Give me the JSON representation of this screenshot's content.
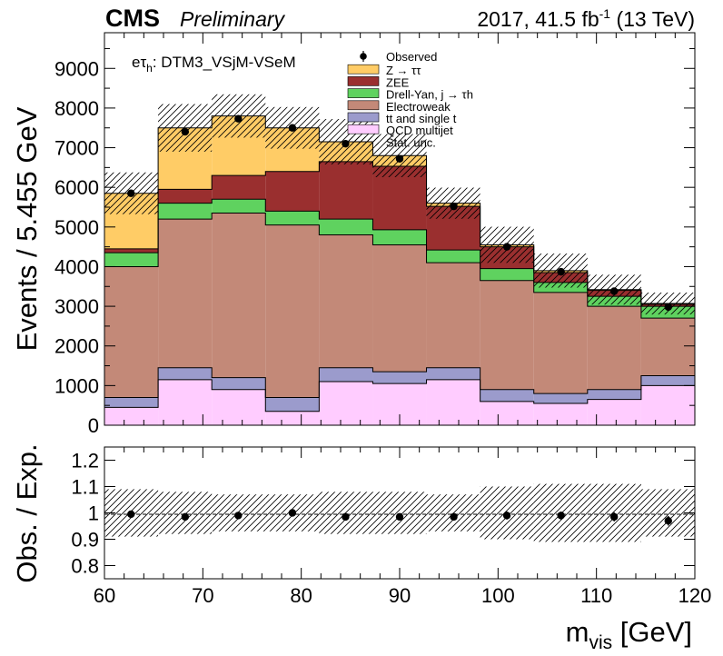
{
  "header": {
    "cms": "CMS",
    "preliminary": "Preliminary",
    "lumi_prefix": "2017, 41.5 fb",
    "lumi_sup": "-1",
    "lumi_suffix": " (13 TeV)"
  },
  "channel_label": {
    "prefix": "eτ",
    "sub": "h",
    "suffix": ": DTM3_VSjM-VSeM"
  },
  "colors": {
    "ztt": "#ffcc66",
    "zee": "#9a2f2f",
    "dy_jtau": "#5fd25f",
    "ewk": "#c38978",
    "ttbar": "#9b9bcc",
    "qcd": "#ffccff",
    "observed": "#000000"
  },
  "chart_data": [
    {
      "type": "bar",
      "stacked": true,
      "bin_edges": [
        60,
        65.455,
        70.909,
        76.364,
        81.818,
        87.273,
        92.727,
        98.182,
        103.636,
        109.091,
        114.545,
        120
      ],
      "series": [
        {
          "key": "qcd",
          "name": "QCD multijet",
          "values": [
            450,
            1150,
            900,
            350,
            1100,
            1050,
            1150,
            600,
            550,
            650,
            1000
          ]
        },
        {
          "key": "ttbar",
          "name": "tt and single t",
          "values": [
            250,
            300,
            300,
            350,
            350,
            300,
            300,
            300,
            250,
            250,
            250
          ]
        },
        {
          "key": "ewk",
          "name": "Electroweak",
          "values": [
            3300,
            3750,
            4150,
            4350,
            3350,
            3200,
            2650,
            2750,
            2550,
            2100,
            1450
          ]
        },
        {
          "key": "dy_jtau",
          "name": "Drell-Yan, j → τh",
          "values": [
            350,
            400,
            350,
            350,
            400,
            380,
            320,
            300,
            250,
            250,
            300
          ]
        },
        {
          "key": "zee",
          "name": "ZEE",
          "values": [
            100,
            350,
            600,
            1000,
            1450,
            1600,
            1100,
            550,
            250,
            150,
            50
          ]
        },
        {
          "key": "ztt",
          "name": "Z → ττ",
          "values": [
            1400,
            1550,
            1500,
            1100,
            500,
            270,
            80,
            50,
            50,
            20,
            20
          ]
        }
      ],
      "observed": {
        "name": "Observed",
        "x": [
          62.7,
          68.2,
          73.6,
          79.1,
          84.5,
          90.0,
          95.5,
          100.9,
          106.4,
          111.8,
          117.3
        ],
        "y": [
          5850,
          7400,
          7730,
          7500,
          7100,
          6720,
          5520,
          4500,
          3870,
          3380,
          2980
        ],
        "yerr": [
          75,
          85,
          88,
          86,
          84,
          82,
          74,
          67,
          62,
          58,
          55
        ]
      },
      "stat_unc_rel": [
        0.09,
        0.08,
        0.07,
        0.07,
        0.08,
        0.08,
        0.07,
        0.1,
        0.11,
        0.11,
        0.09
      ],
      "stat_unc_label": "Stat. unc.",
      "ylabel": "Events / 5.455 GeV",
      "xlim": [
        60,
        120
      ],
      "ylim": [
        0,
        9900
      ],
      "y_ticks": [
        0,
        1000,
        2000,
        3000,
        4000,
        5000,
        6000,
        7000,
        8000,
        9000
      ],
      "legend_position": "top-right"
    },
    {
      "type": "scatter",
      "x": [
        62.7,
        68.2,
        73.6,
        79.1,
        84.5,
        90.0,
        95.5,
        100.9,
        106.4,
        111.8,
        117.3
      ],
      "y": [
        0.995,
        0.985,
        0.99,
        1.0,
        0.985,
        0.985,
        0.985,
        0.99,
        0.99,
        0.985,
        0.97
      ],
      "yerr": [
        0.012,
        0.012,
        0.012,
        0.012,
        0.012,
        0.012,
        0.013,
        0.015,
        0.015,
        0.017,
        0.018
      ],
      "band_rel": [
        0.09,
        0.08,
        0.07,
        0.07,
        0.08,
        0.08,
        0.07,
        0.1,
        0.11,
        0.11,
        0.09
      ],
      "ylabel": "Obs. / Exp.",
      "xlabel_main": "m",
      "xlabel_sub": "vis",
      "xlabel_unit": " [GeV]",
      "xlim": [
        60,
        120
      ],
      "ylim": [
        0.75,
        1.25
      ],
      "y_ticks": [
        0.8,
        0.9,
        1,
        1.1,
        1.2
      ],
      "x_ticks": [
        60,
        70,
        80,
        90,
        100,
        110,
        120
      ]
    }
  ]
}
